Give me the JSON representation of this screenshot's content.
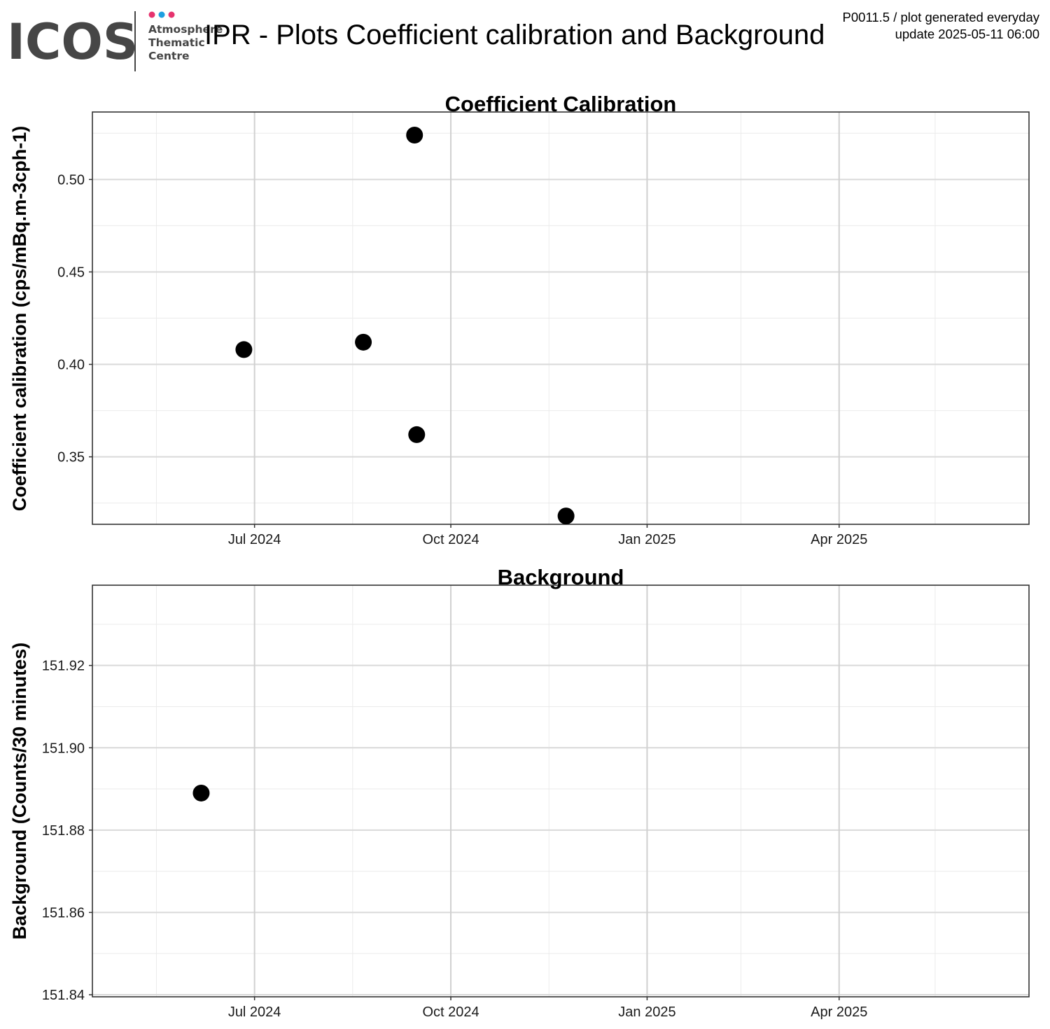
{
  "header": {
    "logo_word": "ICOS",
    "logo_lines": [
      "Atmosphere",
      "Thematic",
      "Centre"
    ],
    "logo_dot_colors": [
      "#e6336e",
      "#1e9fe0",
      "#e6336e"
    ],
    "logo_color": "#464646",
    "title": "IPR - Plots Coefficient calibration and Background",
    "meta_line1": "P0011.5 / plot generated everyday",
    "meta_line2": "update  2025-05-11 06:00"
  },
  "chart_data": [
    {
      "type": "scatter",
      "title": "Coefficient Calibration",
      "xlabel": "",
      "ylabel": "Coefficient calibration (cps/mBq.m-3cph-1)",
      "x_axis": "date",
      "xlim": [
        "2024-04-16",
        "2025-06-29"
      ],
      "xticks": [
        {
          "date": "2024-07-01",
          "label": "Jul 2024"
        },
        {
          "date": "2024-10-01",
          "label": "Oct 2024"
        },
        {
          "date": "2025-01-01",
          "label": "Jan 2025"
        },
        {
          "date": "2025-04-01",
          "label": "Apr 2025"
        }
      ],
      "x_minor": [
        "2024-05-16",
        "2024-08-16",
        "2024-11-16",
        "2025-02-14",
        "2025-05-16"
      ],
      "ylim": [
        0.3135,
        0.5365
      ],
      "yticks": [
        0.35,
        0.4,
        0.45,
        0.5
      ],
      "ytick_labels": [
        "0.35",
        "0.40",
        "0.45",
        "0.50"
      ],
      "y_minor": [
        0.325,
        0.375,
        0.425,
        0.475,
        0.525
      ],
      "grid": true,
      "series": [
        {
          "x": [
            "2024-06-26",
            "2024-08-21",
            "2024-09-14",
            "2024-09-15",
            "2024-11-24"
          ],
          "y": [
            0.408,
            0.412,
            0.524,
            0.362,
            0.318
          ],
          "color": "#000000"
        }
      ]
    },
    {
      "type": "scatter",
      "title": "Background",
      "xlabel": "",
      "ylabel": "Background (Counts/30 minutes)",
      "x_axis": "date",
      "xlim": [
        "2024-04-16",
        "2025-06-29"
      ],
      "xticks": [
        {
          "date": "2024-07-01",
          "label": "Jul 2024"
        },
        {
          "date": "2024-10-01",
          "label": "Oct 2024"
        },
        {
          "date": "2025-01-01",
          "label": "Jan 2025"
        },
        {
          "date": "2025-04-01",
          "label": "Apr 2025"
        }
      ],
      "x_minor": [
        "2024-05-16",
        "2024-08-16",
        "2024-11-16",
        "2025-02-14",
        "2025-05-16"
      ],
      "ylim": [
        151.8395,
        151.9395
      ],
      "yticks": [
        151.84,
        151.86,
        151.88,
        151.9,
        151.92
      ],
      "ytick_labels": [
        "151.84",
        "151.86",
        "151.88",
        "151.90",
        "151.92"
      ],
      "y_minor": [
        151.85,
        151.87,
        151.89,
        151.91,
        151.93
      ],
      "grid": true,
      "series": [
        {
          "x": [
            "2024-06-06"
          ],
          "y": [
            151.889
          ],
          "color": "#000000"
        }
      ]
    }
  ]
}
